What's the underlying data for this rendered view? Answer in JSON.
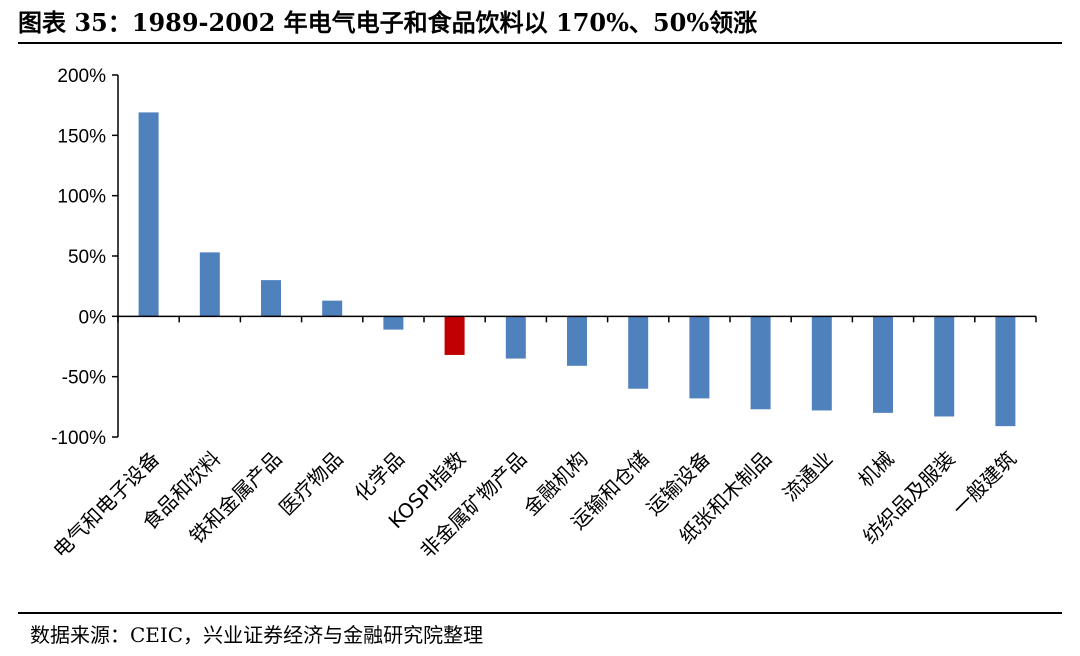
{
  "figure_title": "图表 35：1989-2002 年电气电子和食品饮料以 170%、50%领涨",
  "source_note": "数据来源：CEIC，兴业证券经济与金融研究院整理",
  "colors": {
    "bar": "#4F81BD",
    "highlight": "#C00000",
    "axis": "#000000"
  },
  "chart_data": {
    "type": "bar",
    "title": "",
    "xlabel": "",
    "ylabel": "",
    "ylim": [
      -100,
      200
    ],
    "yticks": [
      200,
      150,
      100,
      50,
      0,
      -50,
      -100
    ],
    "ytick_labels": [
      "200%",
      "150%",
      "100%",
      "50%",
      "0%",
      "-50%",
      "-100%"
    ],
    "grid": false,
    "legend": "none",
    "categories": [
      "电气和电子设备",
      "食品和饮料",
      "铁和金属产品",
      "医疗物品",
      "化学品",
      "KOSPI指数",
      "非金属矿物产品",
      "金融机构",
      "运输和仓储",
      "运输设备",
      "纸张和木制品",
      "流通业",
      "机械",
      "纺织品及服装",
      "一般建筑"
    ],
    "values": [
      169,
      53,
      30,
      13,
      -11,
      -32,
      -35,
      -41,
      -60,
      -68,
      -77,
      -78,
      -80,
      -83,
      -91
    ],
    "highlight_category": "KOSPI指数"
  }
}
